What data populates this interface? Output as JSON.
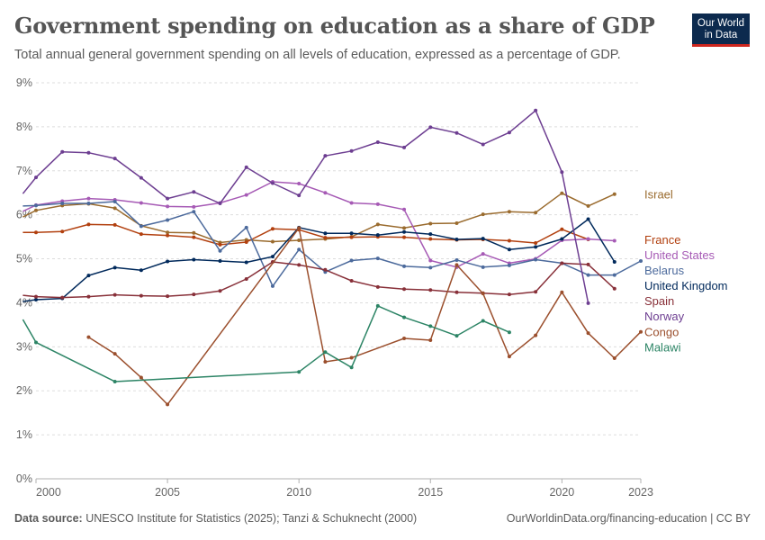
{
  "title": "Government spending on education as a share of GDP",
  "subtitle": "Total annual general government spending on all levels of education, expressed as a percentage of GDP.",
  "logo": {
    "line1": "Our World",
    "line2": "in Data"
  },
  "footer": {
    "source_label": "Data source:",
    "source_text": "UNESCO Institute for Statistics (2025); Tanzi & Schuknecht (2000)",
    "url": "OurWorldinData.org/financing-education | CC BY"
  },
  "chart_data": {
    "type": "line",
    "xlim": [
      2000,
      2023
    ],
    "ylim": [
      0,
      9
    ],
    "x_ticks": [
      2000,
      2005,
      2010,
      2015,
      2020,
      2023
    ],
    "x_tick_labels": [
      "2000",
      "2005",
      "2010",
      "2015",
      "2020",
      "2023"
    ],
    "y_ticks": [
      0,
      1,
      2,
      3,
      4,
      5,
      6,
      7,
      8,
      9
    ],
    "y_tick_labels": [
      "0%",
      "1%",
      "2%",
      "3%",
      "4%",
      "5%",
      "6%",
      "7%",
      "8%",
      "9%"
    ],
    "grid": "horizontal dashed",
    "legend": "right, labels at line ends",
    "series": [
      {
        "name": "Israel",
        "color": "#9a6b2e",
        "points": [
          [
            1999.5,
            5.95
          ],
          [
            2000,
            6.1
          ],
          [
            2001,
            6.21
          ],
          [
            2002,
            6.25
          ],
          [
            2003,
            6.15
          ],
          [
            2004,
            5.75
          ],
          [
            2005,
            5.6
          ],
          [
            2006,
            5.59
          ],
          [
            2007,
            5.37
          ],
          [
            2008,
            5.43
          ],
          [
            2009,
            5.39
          ],
          [
            2010,
            5.42
          ],
          [
            2011,
            5.45
          ],
          [
            2012,
            5.5
          ],
          [
            2013,
            5.78
          ],
          [
            2014,
            5.7
          ],
          [
            2015,
            5.8
          ],
          [
            2016,
            5.81
          ],
          [
            2017,
            6.01
          ],
          [
            2018,
            6.07
          ],
          [
            2019,
            6.05
          ],
          [
            2020,
            6.49
          ],
          [
            2021,
            6.2
          ],
          [
            2022,
            6.47
          ]
        ]
      },
      {
        "name": "France",
        "color": "#b2400f",
        "points": [
          [
            1999.5,
            5.6
          ],
          [
            2000,
            5.6
          ],
          [
            2001,
            5.62
          ],
          [
            2002,
            5.78
          ],
          [
            2003,
            5.77
          ],
          [
            2004,
            5.56
          ],
          [
            2005,
            5.53
          ],
          [
            2006,
            5.49
          ],
          [
            2007,
            5.32
          ],
          [
            2008,
            5.38
          ],
          [
            2009,
            5.68
          ],
          [
            2010,
            5.66
          ],
          [
            2011,
            5.48
          ],
          [
            2012,
            5.49
          ],
          [
            2013,
            5.5
          ],
          [
            2014,
            5.49
          ],
          [
            2015,
            5.45
          ],
          [
            2016,
            5.43
          ],
          [
            2017,
            5.44
          ],
          [
            2018,
            5.41
          ],
          [
            2019,
            5.36
          ],
          [
            2020,
            5.67
          ],
          [
            2021,
            5.44
          ]
        ]
      },
      {
        "name": "United States",
        "color": "#a65ab5",
        "points": [
          [
            1999.5,
            6.08
          ],
          [
            2000,
            6.22
          ],
          [
            2001,
            6.31
          ],
          [
            2002,
            6.37
          ],
          [
            2003,
            6.34
          ],
          [
            2004,
            6.27
          ],
          [
            2005,
            6.19
          ],
          [
            2006,
            6.18
          ],
          [
            2007,
            6.27
          ],
          [
            2008,
            6.45
          ],
          [
            2009,
            6.75
          ],
          [
            2010,
            6.71
          ],
          [
            2011,
            6.5
          ],
          [
            2012,
            6.27
          ],
          [
            2013,
            6.24
          ],
          [
            2014,
            6.12
          ],
          [
            2015,
            4.96
          ],
          [
            2016,
            4.81
          ],
          [
            2017,
            5.11
          ],
          [
            2018,
            4.9
          ],
          [
            2019,
            5.0
          ],
          [
            2020,
            5.42
          ],
          [
            2021,
            5.45
          ],
          [
            2022,
            5.41
          ]
        ]
      },
      {
        "name": "Belarus",
        "color": "#4c6a9c",
        "points": [
          [
            1999.5,
            6.2
          ],
          [
            2000,
            6.21
          ],
          [
            2001,
            6.26
          ],
          [
            2002,
            6.26
          ],
          [
            2003,
            6.3
          ],
          [
            2004,
            5.74
          ],
          [
            2005,
            5.88
          ],
          [
            2006,
            6.07
          ],
          [
            2007,
            5.18
          ],
          [
            2008,
            5.71
          ],
          [
            2009,
            4.38
          ],
          [
            2010,
            5.21
          ],
          [
            2011,
            4.7
          ],
          [
            2012,
            4.96
          ],
          [
            2013,
            5.01
          ],
          [
            2014,
            4.83
          ],
          [
            2015,
            4.8
          ],
          [
            2016,
            4.97
          ],
          [
            2017,
            4.81
          ],
          [
            2018,
            4.85
          ],
          [
            2019,
            4.98
          ],
          [
            2020,
            4.9
          ],
          [
            2021,
            4.63
          ],
          [
            2022,
            4.63
          ],
          [
            2023,
            4.95
          ]
        ]
      },
      {
        "name": "United Kingdom",
        "color": "#00295b",
        "points": [
          [
            1999.5,
            4.03
          ],
          [
            2000,
            4.07
          ],
          [
            2001,
            4.1
          ],
          [
            2002,
            4.62
          ],
          [
            2003,
            4.8
          ],
          [
            2004,
            4.74
          ],
          [
            2005,
            4.94
          ],
          [
            2006,
            4.98
          ],
          [
            2007,
            4.95
          ],
          [
            2008,
            4.92
          ],
          [
            2009,
            5.05
          ],
          [
            2010,
            5.71
          ],
          [
            2011,
            5.58
          ],
          [
            2012,
            5.58
          ],
          [
            2013,
            5.54
          ],
          [
            2014,
            5.61
          ],
          [
            2015,
            5.56
          ],
          [
            2016,
            5.44
          ],
          [
            2017,
            5.46
          ],
          [
            2018,
            5.21
          ],
          [
            2019,
            5.27
          ],
          [
            2020,
            5.45
          ],
          [
            2021,
            5.9
          ],
          [
            2022,
            4.93
          ]
        ]
      },
      {
        "name": "Spain",
        "color": "#883039",
        "points": [
          [
            1999.5,
            4.17
          ],
          [
            2000,
            4.14
          ],
          [
            2001,
            4.12
          ],
          [
            2002,
            4.14
          ],
          [
            2003,
            4.18
          ],
          [
            2004,
            4.16
          ],
          [
            2005,
            4.15
          ],
          [
            2006,
            4.19
          ],
          [
            2007,
            4.27
          ],
          [
            2008,
            4.54
          ],
          [
            2009,
            4.93
          ],
          [
            2010,
            4.86
          ],
          [
            2011,
            4.75
          ],
          [
            2012,
            4.5
          ],
          [
            2013,
            4.36
          ],
          [
            2014,
            4.31
          ],
          [
            2015,
            4.29
          ],
          [
            2016,
            4.24
          ],
          [
            2017,
            4.22
          ],
          [
            2018,
            4.19
          ],
          [
            2019,
            4.25
          ],
          [
            2020,
            4.9
          ],
          [
            2021,
            4.87
          ],
          [
            2022,
            4.32
          ]
        ]
      },
      {
        "name": "Norway",
        "color": "#6d3e91",
        "points": [
          [
            1999.5,
            6.48
          ],
          [
            2000,
            6.85
          ],
          [
            2001,
            7.43
          ],
          [
            2002,
            7.41
          ],
          [
            2003,
            7.28
          ],
          [
            2004,
            6.84
          ],
          [
            2005,
            6.37
          ],
          [
            2006,
            6.52
          ],
          [
            2007,
            6.26
          ],
          [
            2008,
            7.08
          ],
          [
            2009,
            6.72
          ],
          [
            2010,
            6.44
          ],
          [
            2011,
            7.34
          ],
          [
            2012,
            7.45
          ],
          [
            2013,
            7.65
          ],
          [
            2014,
            7.53
          ],
          [
            2015,
            7.99
          ],
          [
            2016,
            7.86
          ],
          [
            2017,
            7.6
          ],
          [
            2018,
            7.87
          ],
          [
            2019,
            8.37
          ],
          [
            2020,
            6.97
          ],
          [
            2021,
            3.99
          ]
        ]
      },
      {
        "name": "Congo",
        "color": "#9b4f2d",
        "points": [
          [
            2002,
            3.22
          ],
          [
            2003,
            2.84
          ],
          [
            2004,
            2.3
          ],
          [
            2005,
            1.69
          ],
          [
            2010,
            5.7
          ],
          [
            2011,
            2.66
          ],
          [
            2012,
            2.75
          ],
          [
            2014,
            3.19
          ],
          [
            2015,
            3.15
          ],
          [
            2016,
            4.86
          ],
          [
            2017,
            4.21
          ],
          [
            2018,
            2.78
          ],
          [
            2019,
            3.26
          ],
          [
            2020,
            4.24
          ],
          [
            2021,
            3.31
          ],
          [
            2022,
            2.74
          ],
          [
            2023,
            3.34
          ]
        ]
      },
      {
        "name": "Malawi",
        "color": "#2c8465",
        "points": [
          [
            1999.5,
            3.62
          ],
          [
            2000,
            3.1
          ],
          [
            2003,
            2.21
          ],
          [
            2010,
            2.43
          ],
          [
            2011,
            2.88
          ],
          [
            2012,
            2.53
          ],
          [
            2013,
            3.93
          ],
          [
            2014,
            3.67
          ],
          [
            2015,
            3.47
          ],
          [
            2016,
            3.25
          ],
          [
            2017,
            3.59
          ],
          [
            2018,
            3.33
          ]
        ]
      }
    ],
    "labels": [
      {
        "name": "Israel",
        "value": 6.47
      },
      {
        "name": "France",
        "value": 5.44
      },
      {
        "name": "United States",
        "value": 5.41
      },
      {
        "name": "Belarus",
        "value": 4.95
      },
      {
        "name": "United Kingdom",
        "value": 4.93
      },
      {
        "name": "Spain",
        "value": 4.32
      },
      {
        "name": "Norway",
        "value": 3.99
      },
      {
        "name": "Congo",
        "value": 3.34
      },
      {
        "name": "Malawi",
        "value": 3.33
      }
    ]
  }
}
